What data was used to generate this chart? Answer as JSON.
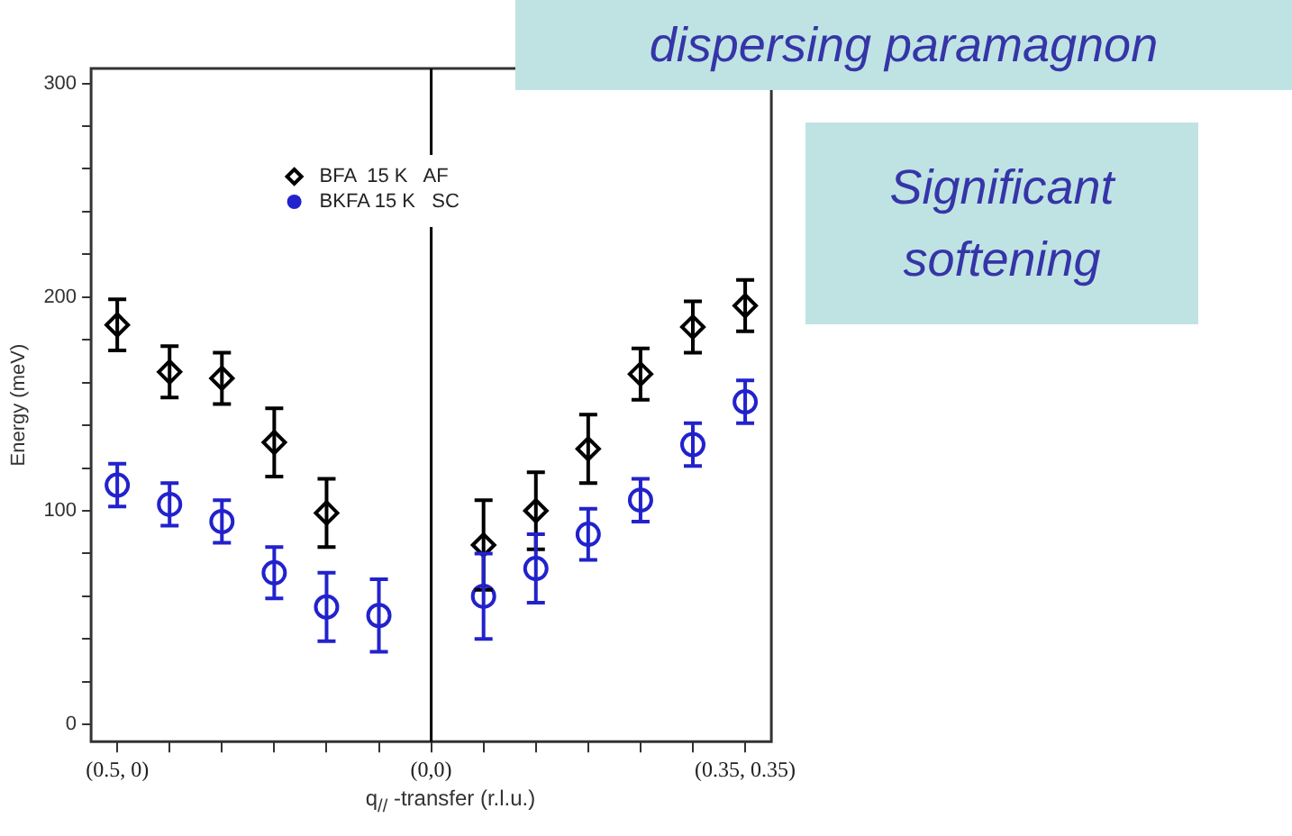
{
  "chart_data": {
    "type": "scatter",
    "xlabel": "q$_{//}$ -transfer (r.l.u.)",
    "ylabel": "Energy (meV)",
    "categories": [
      "(0.5, 0)",
      null,
      null,
      null,
      null,
      null,
      "(0,0)",
      null,
      null,
      null,
      null,
      null,
      "(0.35, 0.35)"
    ],
    "ylim": [
      -8,
      307
    ],
    "yticks": [
      0,
      {
        "value": 20,
        "label": null
      },
      {
        "value": 40,
        "label": null
      },
      {
        "value": 60,
        "label": null
      },
      {
        "value": 80,
        "label": null
      },
      100,
      {
        "value": 120,
        "label": null
      },
      {
        "value": 140,
        "label": null
      },
      {
        "value": 160,
        "label": null
      },
      {
        "value": 180,
        "label": null
      },
      200,
      {
        "value": 220,
        "label": null
      },
      {
        "value": 240,
        "label": null
      },
      {
        "value": 260,
        "label": null
      },
      {
        "value": 280,
        "label": null
      },
      300
    ],
    "ref_lines": [
      {
        "axis": "x",
        "value": "(0,0)",
        "color": "#000000"
      }
    ],
    "legend": "top",
    "grid": false,
    "annotations": [
      "dispersing paramagnon",
      "Significant softening"
    ],
    "series": [
      {
        "name": "BFA  15 K   AF",
        "color": "#000000",
        "marker": "diamond",
        "values": [
          187,
          165,
          162,
          132,
          99,
          null,
          null,
          84,
          100,
          129,
          164,
          186,
          196
        ],
        "errors": [
          12,
          12,
          12,
          16,
          16,
          null,
          null,
          21,
          18,
          16,
          12,
          12,
          12
        ]
      },
      {
        "name": "BKFA 15 K   SC",
        "color": "#2222cc",
        "marker": "circle",
        "values": [
          112,
          103,
          95,
          71,
          55,
          51,
          null,
          60,
          73,
          89,
          105,
          131,
          151
        ],
        "errors": [
          10,
          10,
          10,
          12,
          16,
          17,
          null,
          20,
          16,
          12,
          10,
          10,
          10
        ]
      }
    ]
  }
}
